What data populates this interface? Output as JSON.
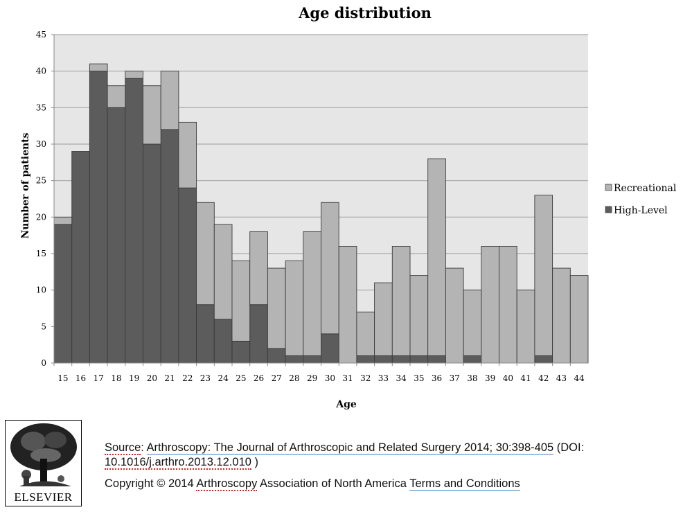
{
  "chart_data": {
    "type": "bar",
    "stacked": true,
    "title": "Age distribution",
    "xlabel": "Age",
    "ylabel": "Number of patients",
    "ylim": [
      0,
      45
    ],
    "yticks": [
      "0",
      "5",
      "10",
      "15",
      "20",
      "25",
      "30",
      "35",
      "40",
      "45"
    ],
    "grid": true,
    "legend_position": "right",
    "categories": [
      "15",
      "16",
      "17",
      "18",
      "19",
      "20",
      "21",
      "22",
      "23",
      "24",
      "25",
      "26",
      "27",
      "28",
      "29",
      "30",
      "31",
      "32",
      "33",
      "34",
      "35",
      "36",
      "37",
      "38",
      "39",
      "40",
      "41",
      "42",
      "43",
      "44"
    ],
    "series": [
      {
        "name": "High-Level",
        "color": "#5c5c5c",
        "values": [
          19,
          29,
          40,
          35,
          39,
          30,
          32,
          24,
          8,
          6,
          3,
          8,
          2,
          1,
          1,
          4,
          0,
          1,
          1,
          1,
          1,
          1,
          0,
          1,
          0,
          0,
          0,
          1,
          0,
          0
        ]
      },
      {
        "name": "Recreational",
        "color": "#b4b4b4",
        "values": [
          1,
          0,
          1,
          3,
          1,
          8,
          8,
          9,
          14,
          13,
          11,
          10,
          11,
          13,
          17,
          18,
          16,
          6,
          10,
          15,
          11,
          27,
          13,
          9,
          16,
          16,
          10,
          22,
          13,
          12
        ]
      }
    ],
    "legend_order": [
      "Recreational",
      "High-Level"
    ],
    "plot_background": "#e6e6e6",
    "gridline_color": "#a8a8a8"
  },
  "footer": {
    "source_label": "Source",
    "source_sep": ": ",
    "journal_link": "Arthroscopy: The Journal of Arthroscopic and Related Surgery 2014; 30:398-405",
    "doi_prefix": " (DOI: ",
    "doi_link": "10.1016/j.arthro.2013.12.010",
    "doi_suffix": " )",
    "copyright_prefix": "Copyright © 2014 ",
    "copyright_org_link": "Arthroscopy",
    "copyright_suffix": " Association of North America ",
    "terms_link": "Terms and Conditions"
  },
  "logo": {
    "wordmark": "ELSEVIER",
    "icon": "elsevier-tree-logo"
  }
}
